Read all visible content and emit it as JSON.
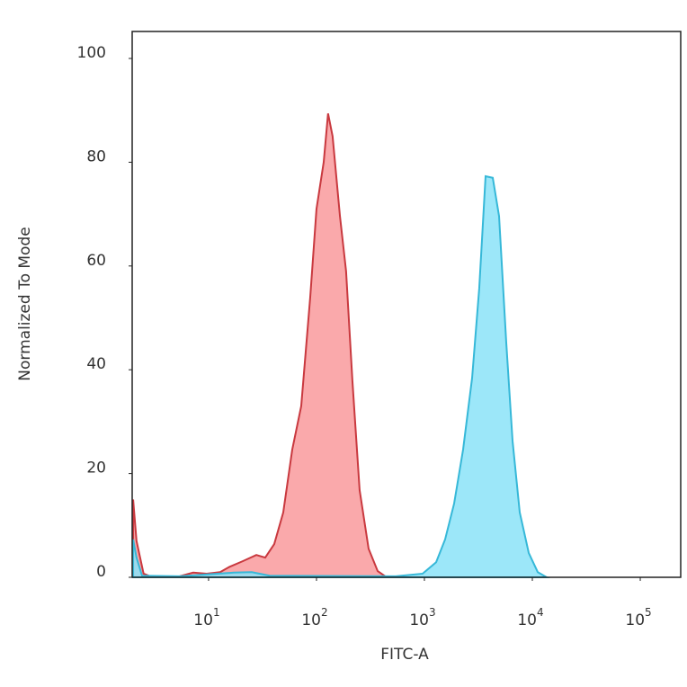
{
  "chart_data": {
    "type": "histogram-overlay",
    "x_label": "FITC-A",
    "y_label": "Normalized To Mode",
    "xscale": "log",
    "xlim": [
      1.96,
      237000
    ],
    "ylim": [
      0,
      105.2
    ],
    "xticks": [
      {
        "value": 10,
        "label": "10",
        "sup": "1"
      },
      {
        "value": 100,
        "label": "10",
        "sup": "2"
      },
      {
        "value": 1000,
        "label": "10",
        "sup": "3"
      },
      {
        "value": 10000,
        "label": "10",
        "sup": "4"
      },
      {
        "value": 100000,
        "label": "10",
        "sup": "5"
      }
    ],
    "yticks": [
      0,
      20,
      40,
      60,
      80,
      100
    ],
    "series": [
      {
        "color": "#c9393f",
        "fill": "#f99a9c",
        "x": [
          2.0,
          2.15,
          2.5,
          3.04,
          5.4,
          7.2,
          9.6,
          12.8,
          15.6,
          20.7,
          27.7,
          33.5,
          40.6,
          49.2,
          59.6,
          72.2,
          87.5,
          100,
          116.6,
          128,
          141,
          165,
          188,
          215,
          251,
          304,
          369,
          447
        ],
        "values": [
          15,
          7,
          0.7,
          0,
          0.2,
          0.9,
          0.7,
          1,
          2,
          3.1,
          4.3,
          3.8,
          6.4,
          12.5,
          24.6,
          33,
          54,
          71,
          80,
          89.4,
          85,
          69.6,
          59,
          38,
          16.8,
          5.5,
          1.2,
          0
        ]
      },
      {
        "color": "#36b8d8",
        "fill": "#8be3f8",
        "x": [
          2.0,
          2.15,
          2.42,
          5.4,
          17.1,
          25.1,
          36.9,
          541,
          962,
          1284,
          1555,
          1884,
          2282,
          2766,
          3221,
          3687,
          4299,
          4917,
          5730,
          6557,
          7644,
          9261,
          11220,
          13590
        ],
        "values": [
          7.3,
          3.8,
          0.3,
          0.2,
          0.9,
          1,
          0.3,
          0.2,
          0.7,
          2.9,
          7.3,
          14.2,
          24.6,
          38.4,
          55.7,
          77.3,
          77,
          69.6,
          45.3,
          26.3,
          12.5,
          4.7,
          1,
          0
        ]
      }
    ]
  }
}
